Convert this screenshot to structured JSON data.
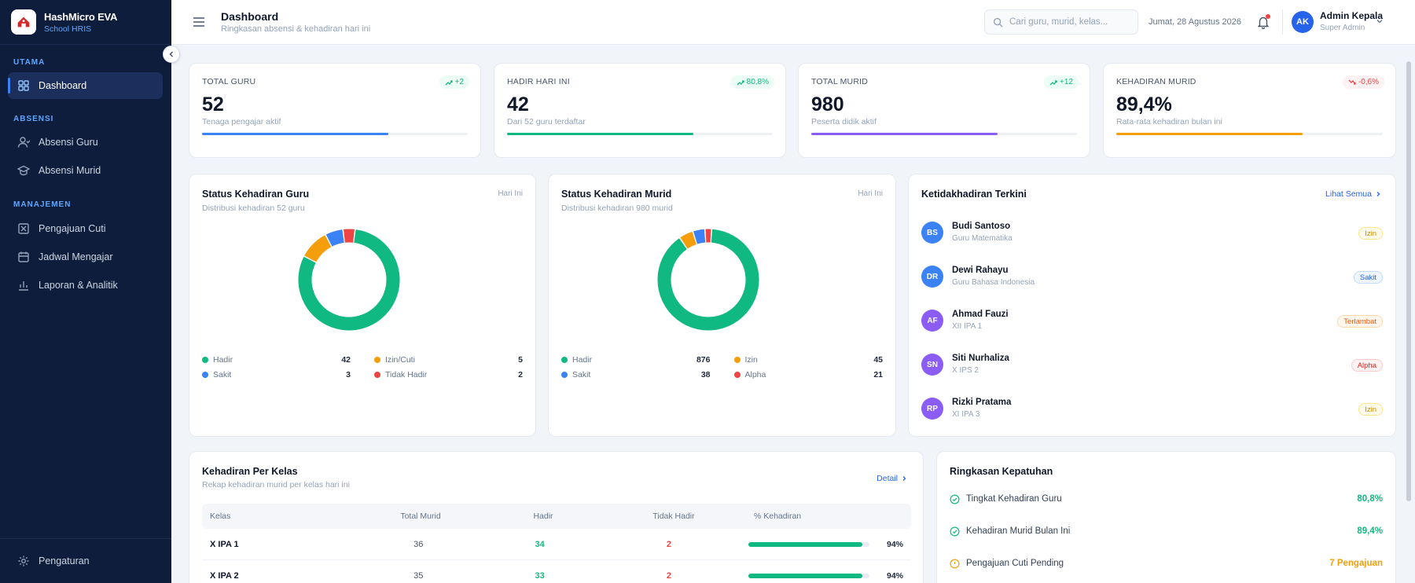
{
  "brand": {
    "name": "HashMicro EVA",
    "subtitle": "School HRIS"
  },
  "sidebar": {
    "sections": [
      {
        "title": "UTAMA"
      },
      {
        "title": "ABSENSI"
      },
      {
        "title": "MANAJEMEN"
      }
    ],
    "items": [
      {
        "label": "Dashboard",
        "icon": "grid-icon",
        "active": true
      },
      {
        "label": "Absensi Guru",
        "icon": "user-icon"
      },
      {
        "label": "Absensi Murid",
        "icon": "graduation-cap-icon"
      },
      {
        "label": "Pengajuan Cuti",
        "icon": "file-x-icon"
      },
      {
        "label": "Jadwal Mengajar",
        "icon": "calendar-icon"
      },
      {
        "label": "Laporan & Analitik",
        "icon": "bar-chart-icon"
      }
    ],
    "settings_label": "Pengaturan"
  },
  "header": {
    "title": "Dashboard",
    "subtitle": "Ringkasan absensi & kehadiran hari ini",
    "search_placeholder": "Cari guru, murid, kelas...",
    "date": "Jumat, 28 Agustus 2026",
    "user": {
      "initials": "AK",
      "name": "Admin Kepala",
      "role": "Super Admin"
    }
  },
  "stats": [
    {
      "label": "TOTAL GURU",
      "value": "52",
      "desc": "Tenaga pengajar aktif",
      "badge": "+2",
      "trend": "up",
      "progress": 0.7,
      "color": "#3b82f6"
    },
    {
      "label": "HADIR HARI INI",
      "value": "42",
      "desc": "Dari 52 guru terdaftar",
      "badge": "80,8%",
      "trend": "up",
      "progress": 0.7,
      "color": "#10b981"
    },
    {
      "label": "TOTAL MURID",
      "value": "980",
      "desc": "Peserta didik aktif",
      "badge": "+12",
      "trend": "up",
      "progress": 0.7,
      "color": "#8b5cf6"
    },
    {
      "label": "KEHADIRAN MURID",
      "value": "89,4%",
      "desc": "Rata-rata kehadiran bulan ini",
      "badge": "-0,6%",
      "trend": "down",
      "progress": 0.7,
      "color": "#f59e0b"
    }
  ],
  "teacher_status": {
    "title": "Status Kehadiran Guru",
    "subtitle": "Distribusi kehadiran 52 guru",
    "tag": "Hari Ini",
    "items": [
      {
        "label": "Hadir",
        "value": "42",
        "color": "#10b981"
      },
      {
        "label": "Izin/Cuti",
        "value": "5",
        "color": "#f59e0b"
      },
      {
        "label": "Sakit",
        "value": "3",
        "color": "#3b82f6"
      },
      {
        "label": "Tidak Hadir",
        "value": "2",
        "color": "#ef4444"
      }
    ]
  },
  "student_status": {
    "title": "Status Kehadiran Murid",
    "subtitle": "Distribusi kehadiran 980 murid",
    "tag": "Hari Ini",
    "items": [
      {
        "label": "Hadir",
        "value": "876",
        "color": "#10b981"
      },
      {
        "label": "Izin",
        "value": "45",
        "color": "#f59e0b"
      },
      {
        "label": "Sakit",
        "value": "38",
        "color": "#3b82f6"
      },
      {
        "label": "Alpha",
        "value": "21",
        "color": "#ef4444"
      }
    ]
  },
  "absences": {
    "title": "Ketidakhadiran Terkini",
    "link": "Lihat Semua",
    "items": [
      {
        "initials": "BS",
        "name": "Budi Santoso",
        "role": "Guru Matematika",
        "status": "Izin",
        "avatar_color": "#3b82f6",
        "badge_bg": "#fefce8",
        "badge_fg": "#ca8a04",
        "badge_border": "#fde68a"
      },
      {
        "initials": "DR",
        "name": "Dewi Rahayu",
        "role": "Guru Bahasa Indonesia",
        "status": "Sakit",
        "avatar_color": "#3b82f6",
        "badge_bg": "#eff6ff",
        "badge_fg": "#2563eb",
        "badge_border": "#bfdbfe"
      },
      {
        "initials": "AF",
        "name": "Ahmad Fauzi",
        "role": "XII IPA 1",
        "status": "Terlambat",
        "avatar_color": "#8b5cf6",
        "badge_bg": "#fff7ed",
        "badge_fg": "#ea580c",
        "badge_border": "#fed7aa"
      },
      {
        "initials": "SN",
        "name": "Siti Nurhaliza",
        "role": "X IPS 2",
        "status": "Alpha",
        "avatar_color": "#8b5cf6",
        "badge_bg": "#fef2f2",
        "badge_fg": "#dc2626",
        "badge_border": "#fecaca"
      },
      {
        "initials": "RP",
        "name": "Rizki Pratama",
        "role": "XI IPA 3",
        "status": "Izin",
        "avatar_color": "#8b5cf6",
        "badge_bg": "#fefce8",
        "badge_fg": "#ca8a04",
        "badge_border": "#fde68a"
      }
    ]
  },
  "class_table": {
    "title": "Kehadiran Per Kelas",
    "subtitle": "Rekap kehadiran murid per kelas hari ini",
    "link": "Detail",
    "columns": [
      "Kelas",
      "Total Murid",
      "Hadir",
      "Tidak Hadir",
      "% Kehadiran"
    ],
    "rows": [
      {
        "kelas": "X IPA 1",
        "total": "36",
        "hadir": "34",
        "tidak": "2",
        "pct": "94%",
        "fraction": 0.94
      },
      {
        "kelas": "X IPA 2",
        "total": "35",
        "hadir": "33",
        "tidak": "2",
        "pct": "94%",
        "fraction": 0.94
      }
    ]
  },
  "compliance": {
    "title": "Ringkasan Kepatuhan",
    "items": [
      {
        "label": "Tingkat Kehadiran Guru",
        "value": "80,8%",
        "color": "#10b981",
        "icon": "check-circle-icon"
      },
      {
        "label": "Kehadiran Murid Bulan Ini",
        "value": "89,4%",
        "color": "#10b981",
        "icon": "check-circle-icon"
      },
      {
        "label": "Pengajuan Cuti Pending",
        "value": "7 Pengajuan",
        "color": "#f59e0b",
        "icon": "alert-circle-icon"
      }
    ]
  }
}
